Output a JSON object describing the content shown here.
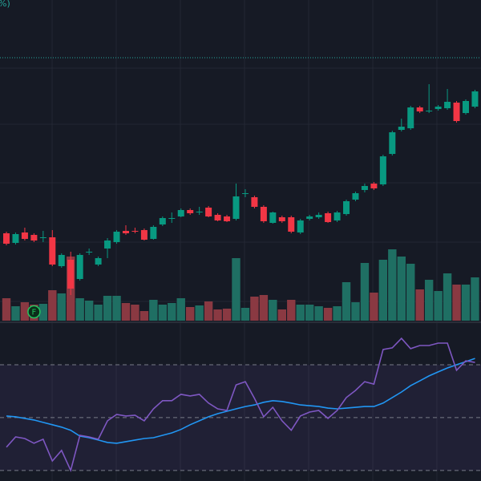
{
  "chart_data": {
    "type": "candlestick",
    "legend_text": "%)",
    "marker_label": "F",
    "up_color": "#089981",
    "down_color": "#f23645",
    "volume_up_color": "#1f6f63",
    "volume_down_color": "#8a3942",
    "ylim": [
      0,
      400
    ],
    "price_line": 328,
    "open": [
      109,
      97,
      110,
      107,
      103,
      104,
      68,
      76,
      52,
      85,
      70,
      90,
      98,
      112,
      112,
      113,
      102,
      120,
      127,
      130,
      138,
      135,
      141,
      132,
      130,
      127,
      158,
      154,
      142,
      122,
      129,
      129,
      110,
      127,
      129,
      134,
      125,
      133,
      151,
      163,
      171,
      170,
      208,
      238,
      240,
      266,
      261,
      264,
      265,
      272,
      259,
      267
    ],
    "high": [
      111,
      110,
      116,
      109,
      112,
      113,
      84,
      86,
      84,
      90,
      80,
      103,
      113,
      119,
      116,
      115,
      119,
      130,
      135,
      140,
      140,
      142,
      143,
      134,
      132,
      171,
      164,
      156,
      144,
      136,
      131,
      131,
      127,
      132,
      135,
      136,
      137,
      151,
      161,
      171,
      173,
      207,
      237,
      252,
      268,
      268,
      295,
      269,
      289,
      274,
      276,
      288
    ],
    "low": [
      94,
      95,
      100,
      98,
      98,
      68,
      66,
      32,
      50,
      82,
      68,
      78,
      96,
      107,
      109,
      100,
      101,
      118,
      122,
      129,
      132,
      132,
      129,
      124,
      123,
      125,
      154,
      140,
      122,
      121,
      122,
      109,
      108,
      125,
      127,
      122,
      123,
      131,
      149,
      160,
      163,
      168,
      206,
      236,
      238,
      259,
      259,
      262,
      263,
      247,
      257,
      265
    ],
    "close": [
      96,
      108,
      102,
      100,
      104,
      70,
      82,
      40,
      82,
      86,
      78,
      100,
      111,
      109,
      111,
      101,
      117,
      128,
      128,
      138,
      134,
      136,
      130,
      125,
      124,
      155,
      159,
      142,
      124,
      135,
      124,
      111,
      125,
      130,
      132,
      123,
      135,
      149,
      159,
      168,
      165,
      205,
      235,
      242,
      266,
      261,
      262,
      267,
      273,
      249,
      274,
      286
    ],
    "volume_ylim": [
      0,
      400
    ],
    "volume": [
      28,
      18,
      23,
      20,
      21,
      38,
      34,
      80,
      28,
      25,
      20,
      31,
      31,
      22,
      20,
      12,
      26,
      20,
      22,
      28,
      17,
      19,
      24,
      14,
      15,
      78,
      16,
      30,
      32,
      26,
      14,
      26,
      20,
      20,
      18,
      16,
      18,
      48,
      23,
      72,
      35,
      76,
      89,
      80,
      71,
      39,
      51,
      37,
      59,
      45,
      45,
      54
    ],
    "rsi": {
      "ylim": [
        26,
        86.7
      ],
      "levels": [
        70,
        50,
        30
      ],
      "color": "#7e57c2",
      "ma_color": "#2196f3",
      "values": [
        38.8,
        42.7,
        42.1,
        40.3,
        41.8,
        33.6,
        37.6,
        30,
        43.3,
        42.7,
        41.8,
        48.8,
        51.2,
        50.6,
        50.9,
        48.8,
        53.3,
        56.4,
        56.4,
        58.8,
        58.2,
        58.8,
        55.5,
        53.3,
        52.7,
        62.4,
        63.6,
        57.3,
        50.3,
        53.9,
        48.8,
        45.2,
        50.6,
        52.1,
        52.7,
        49.7,
        52.7,
        57.6,
        60.3,
        63.6,
        62.7,
        75.8,
        76.4,
        80,
        76.1,
        77.3,
        77.3,
        78.2,
        78.2,
        67.9,
        71.5,
        70.9
      ],
      "ma": [
        50.6,
        50.3,
        49.7,
        49.1,
        48.2,
        47.3,
        46.4,
        45.2,
        43.0,
        42.4,
        41.5,
        40.6,
        40.3,
        40.9,
        41.5,
        42.1,
        42.4,
        43.3,
        44.2,
        45.5,
        47.3,
        48.8,
        50.3,
        51.5,
        52.4,
        53.3,
        54.2,
        54.8,
        55.8,
        56.4,
        56.1,
        55.5,
        54.8,
        54.5,
        54.2,
        53.6,
        53.3,
        53.6,
        53.9,
        54.2,
        54.2,
        55.5,
        57.6,
        59.7,
        62.1,
        63.9,
        65.8,
        67.3,
        68.8,
        70,
        71.2,
        72.4
      ]
    }
  }
}
